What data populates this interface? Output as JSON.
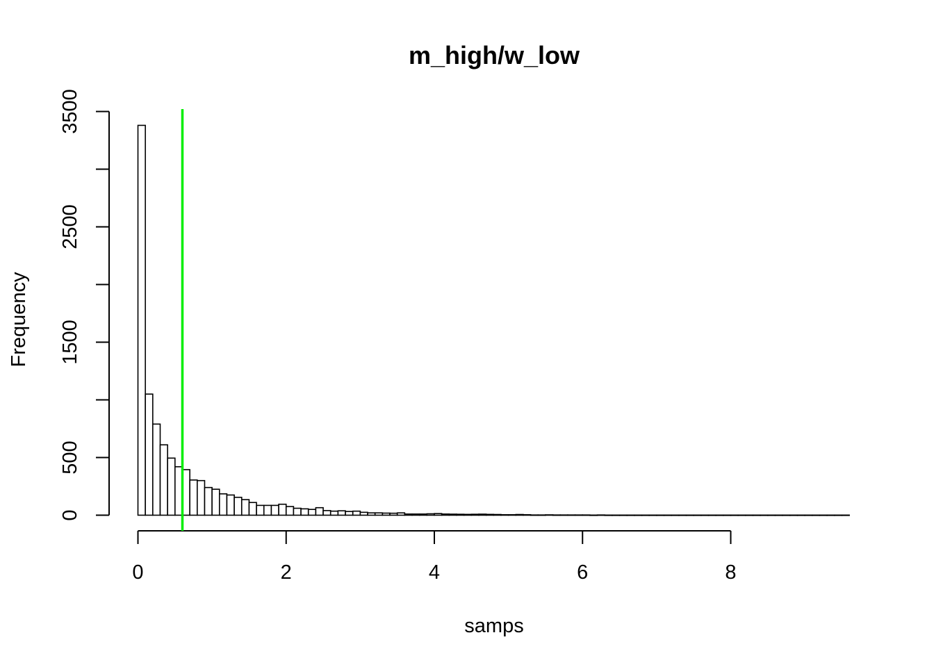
{
  "chart_data": {
    "type": "bar",
    "title": "m_high/w_low",
    "xlabel": "samps",
    "ylabel": "Frequency",
    "xlim": [
      0,
      9.6
    ],
    "ylim": [
      0,
      3500
    ],
    "x_ticks": [
      0,
      2,
      4,
      6,
      8
    ],
    "y_ticks": [
      0,
      500,
      1000,
      1500,
      2000,
      2500,
      3000,
      3500
    ],
    "y_tick_labels": [
      "0",
      "500",
      "",
      "1500",
      "",
      "2500",
      "",
      "3500"
    ],
    "bin_width": 0.1,
    "bin_start": 0,
    "values": [
      3380,
      1050,
      790,
      610,
      495,
      420,
      395,
      305,
      300,
      240,
      225,
      185,
      175,
      155,
      135,
      110,
      85,
      85,
      85,
      95,
      75,
      60,
      55,
      50,
      65,
      40,
      35,
      38,
      32,
      35,
      25,
      20,
      20,
      18,
      17,
      20,
      10,
      10,
      10,
      12,
      14,
      10,
      9,
      8,
      7,
      8,
      9,
      7,
      6,
      4,
      4,
      6,
      4,
      2,
      2,
      3,
      2,
      2,
      2,
      2,
      2,
      1,
      2,
      1,
      1,
      1,
      1,
      1,
      1,
      1,
      1,
      1,
      1,
      1,
      1,
      1,
      1,
      1,
      1,
      1,
      1,
      1,
      1,
      1,
      1,
      1,
      1,
      1,
      1,
      1,
      1,
      1,
      1,
      1,
      1,
      1
    ],
    "reference_line": {
      "x": 0.6,
      "color": "#00ee00"
    },
    "bar_fill": "#ffffff",
    "bar_stroke": "#000000",
    "grid": false
  }
}
